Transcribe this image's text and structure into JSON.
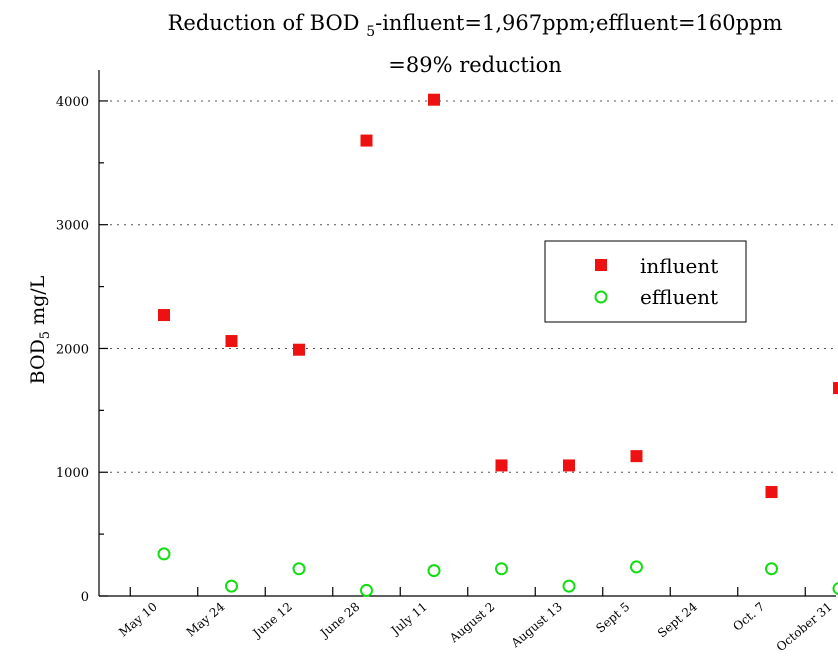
{
  "chart_data": {
    "type": "scatter",
    "title_line1_parts": [
      "Reduction of BOD ",
      "5",
      "-influent=1,967ppm;effluent=160ppm"
    ],
    "title_line2": "=89% reduction",
    "ylabel_parts": [
      "BOD",
      "5",
      " mg/L"
    ],
    "categories": [
      "May 10",
      "May 24",
      "June 12",
      "June 28",
      "July 11",
      "August 2",
      "August 13",
      "Sept 5",
      "Sept 24",
      "Oct. 7",
      "October 31"
    ],
    "y_ticks": [
      0,
      1000,
      2000,
      3000,
      4000
    ],
    "ylim": [
      0,
      4250
    ],
    "grid": "horizontal dotted",
    "legend_position": "right",
    "series": [
      {
        "name": "influent",
        "marker": "filled-square",
        "color": "#ee1111",
        "points": [
          {
            "x": "May 10",
            "y": 2270
          },
          {
            "x": "May 24",
            "y": 2060
          },
          {
            "x": "June 12",
            "y": 1990
          },
          {
            "x": "June 28",
            "y": 3680
          },
          {
            "x": "July 11",
            "y": 4010
          },
          {
            "x": "August 2",
            "y": 1055
          },
          {
            "x": "August 13",
            "y": 1055
          },
          {
            "x": "Sept 5",
            "y": 1130
          },
          {
            "x": "Oct. 7",
            "y": 840
          },
          {
            "x": "October 31",
            "y": 1680
          }
        ]
      },
      {
        "name": "effluent",
        "marker": "open-circle",
        "color": "#11dd11",
        "points": [
          {
            "x": "May 10",
            "y": 340
          },
          {
            "x": "May 24",
            "y": 80
          },
          {
            "x": "June 12",
            "y": 220
          },
          {
            "x": "June 28",
            "y": 45
          },
          {
            "x": "July 11",
            "y": 205
          },
          {
            "x": "August 2",
            "y": 220
          },
          {
            "x": "August 13",
            "y": 80
          },
          {
            "x": "Sept 5",
            "y": 235
          },
          {
            "x": "Oct. 7",
            "y": 220
          },
          {
            "x": "October 31",
            "y": 60
          }
        ]
      }
    ]
  }
}
